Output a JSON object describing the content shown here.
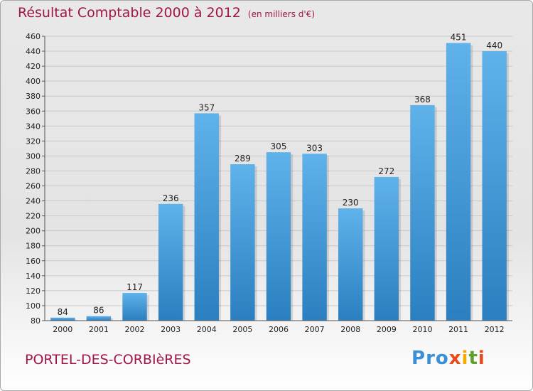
{
  "header": {
    "title": "Résultat Comptable 2000 à 2012",
    "subtitle": "(en milliers d'€)"
  },
  "footer": {
    "commune": "PORTEL-DES-CORBIèRES",
    "logo_letters": [
      "P",
      "r",
      "o",
      "x",
      "i",
      "t",
      "i"
    ],
    "logo_colors": [
      "#3a8fd6",
      "#3a8fd6",
      "#3a8fd6",
      "#e8491d",
      "#f2a900",
      "#5aa02c",
      "#e8491d"
    ]
  },
  "colors": {
    "title": "#a0154a",
    "bar_top": "#5fb2ea",
    "bar_bottom": "#2b7fc0",
    "grid": "#c9c9c9"
  },
  "chart_data": {
    "type": "bar",
    "title": "Résultat Comptable 2000 à 2012",
    "subtitle": "(en milliers d'€)",
    "xlabel": "",
    "ylabel": "",
    "categories": [
      "2000",
      "2001",
      "2002",
      "2003",
      "2004",
      "2005",
      "2006",
      "2007",
      "2008",
      "2009",
      "2010",
      "2011",
      "2012"
    ],
    "values": [
      84,
      86,
      117,
      236,
      357,
      289,
      305,
      303,
      230,
      272,
      368,
      451,
      440
    ],
    "ylim": [
      80,
      460
    ],
    "yticks": [
      80,
      100,
      120,
      140,
      160,
      180,
      200,
      220,
      240,
      260,
      280,
      300,
      320,
      340,
      360,
      380,
      400,
      420,
      440,
      460
    ],
    "grid": true
  }
}
